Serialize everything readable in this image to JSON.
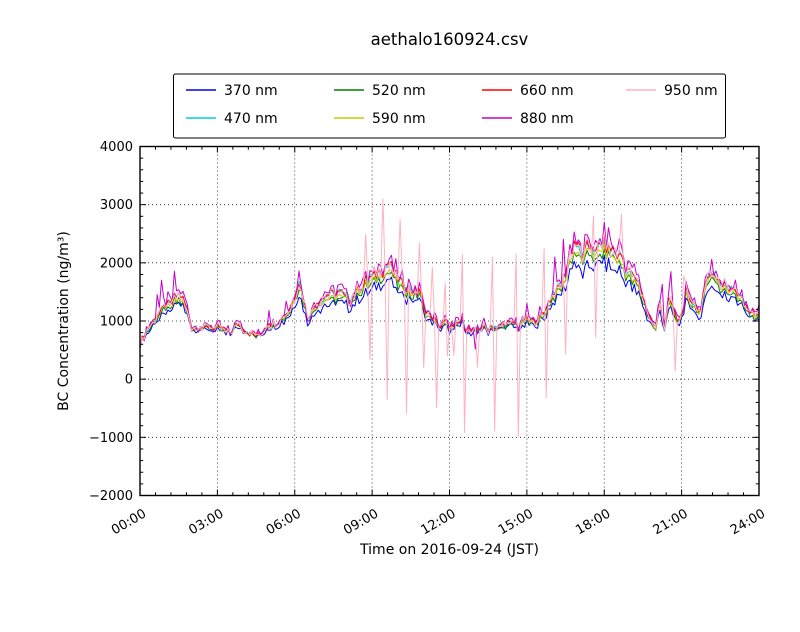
{
  "window": {
    "background": "#ffffff",
    "frame_color": "#000000"
  },
  "chart_data": {
    "type": "line",
    "title": "aethalo160924.csv",
    "xlabel": "Time on 2016-09-24 (JST)",
    "ylabel": "BC Concentration (ng/m³)",
    "xlim_hours": [
      0,
      24
    ],
    "ylim": [
      -2000,
      4000
    ],
    "grid": "dotted",
    "legend": {
      "position": "top",
      "columns": 4,
      "rows": 2
    },
    "xticks": [
      {
        "h": 0,
        "label": "00:00"
      },
      {
        "h": 3,
        "label": "03:00"
      },
      {
        "h": 6,
        "label": "06:00"
      },
      {
        "h": 9,
        "label": "09:00"
      },
      {
        "h": 12,
        "label": "12:00"
      },
      {
        "h": 15,
        "label": "15:00"
      },
      {
        "h": 18,
        "label": "18:00"
      },
      {
        "h": 21,
        "label": "21:00"
      },
      {
        "h": 24,
        "label": "24:00"
      }
    ],
    "yticks": [
      {
        "v": -2000,
        "label": "−2000"
      },
      {
        "v": -1000,
        "label": "−1000"
      },
      {
        "v": 0,
        "label": "0"
      },
      {
        "v": 1000,
        "label": "1000"
      },
      {
        "v": 2000,
        "label": "2000"
      },
      {
        "v": 3000,
        "label": "3000"
      },
      {
        "v": 4000,
        "label": "4000"
      }
    ],
    "sample_minutes": 5,
    "backbone_step_minutes": 10,
    "backbone": [
      600,
      760,
      880,
      980,
      1080,
      1150,
      1260,
      1240,
      1360,
      1400,
      1340,
      1180,
      900,
      870,
      900,
      860,
      910,
      880,
      880,
      850,
      810,
      790,
      890,
      950,
      870,
      820,
      780,
      740,
      770,
      870,
      950,
      920,
      980,
      1040,
      1110,
      1220,
      1420,
      1680,
      1380,
      1060,
      1150,
      1290,
      1340,
      1380,
      1420,
      1400,
      1450,
      1430,
      1370,
      1340,
      1450,
      1540,
      1600,
      1660,
      1700,
      1740,
      1800,
      1870,
      1920,
      1780,
      1660,
      1610,
      1560,
      1500,
      1460,
      1520,
      1210,
      1110,
      1060,
      950,
      900,
      950,
      900,
      880,
      950,
      1000,
      860,
      800,
      830,
      880,
      900,
      870,
      910,
      850,
      900,
      950,
      920,
      980,
      900,
      950,
      1010,
      980,
      1000,
      1050,
      1110,
      1300,
      1440,
      1500,
      1610,
      1800,
      2090,
      2240,
      2190,
      2050,
      2190,
      2240,
      2100,
      2240,
      2290,
      2200,
      2150,
      2100,
      2050,
      1860,
      1800,
      1700,
      1600,
      1400,
      1150,
      1000,
      860,
      1330,
      900,
      1300,
      1230,
      950,
      1090,
      1480,
      1250,
      1340,
      1120,
      1400,
      1640,
      1880,
      1700,
      1590,
      1640,
      1500,
      1540,
      1400,
      1440,
      1250,
      1150,
      1060,
      1150
    ],
    "series": [
      {
        "name": "370 nm",
        "color": "#0000ee",
        "rel": -0.16,
        "jitter": 1.0,
        "seed": 1
      },
      {
        "name": "470 nm",
        "color": "#00d0d0",
        "rel": 0.04,
        "jitter": 1.0,
        "seed": 2
      },
      {
        "name": "520 nm",
        "color": "#008000",
        "rel": -0.055,
        "jitter": 0.9,
        "seed": 3
      },
      {
        "name": "590 nm",
        "color": "#c8c800",
        "rel": -0.02,
        "jitter": 0.9,
        "seed": 4
      },
      {
        "name": "660 nm",
        "color": "#ff0000",
        "rel": 0.045,
        "jitter": 1.0,
        "seed": 5
      },
      {
        "name": "880 nm",
        "color": "#c800c8",
        "rel": 0.1,
        "jitter": 1.8,
        "seed": 6
      },
      {
        "name": "950 nm",
        "color": "#ffb3c1",
        "rel": 0.03,
        "jitter": 1.35,
        "seed": 7
      }
    ],
    "spikes_950_up": [
      [
        8.75,
        2490
      ],
      [
        9.45,
        3100
      ],
      [
        10.08,
        2745
      ],
      [
        10.87,
        2340
      ],
      [
        11.3,
        1920
      ],
      [
        11.85,
        1650
      ],
      [
        12.5,
        2150
      ],
      [
        13.7,
        2100
      ],
      [
        14.58,
        2150
      ],
      [
        15.65,
        2250
      ],
      [
        17.55,
        2805
      ],
      [
        18.7,
        2835
      ],
      [
        21.1,
        1775
      ]
    ],
    "spikes_950_down": [
      [
        8.95,
        340
      ],
      [
        9.6,
        -350
      ],
      [
        10.3,
        -580
      ],
      [
        11.03,
        200
      ],
      [
        11.5,
        -490
      ],
      [
        11.92,
        400
      ],
      [
        12.2,
        410
      ],
      [
        12.57,
        -920
      ],
      [
        13.05,
        210
      ],
      [
        13.77,
        -890
      ],
      [
        14.65,
        -980
      ],
      [
        15.72,
        -320
      ],
      [
        16.5,
        430
      ],
      [
        17.67,
        715
      ],
      [
        20.75,
        140
      ]
    ],
    "spikes_880": [
      [
        0.67,
        1450
      ],
      [
        0.87,
        1700
      ],
      [
        1.35,
        1855
      ],
      [
        5.0,
        1180
      ],
      [
        5.68,
        1340
      ],
      [
        6.17,
        1860
      ],
      [
        9.33,
        1945
      ],
      [
        13.0,
        515
      ],
      [
        15.0,
        1300
      ],
      [
        15.5,
        1250
      ],
      [
        16.05,
        2100
      ],
      [
        16.45,
        2405
      ],
      [
        16.85,
        2530
      ],
      [
        20.25,
        1630
      ],
      [
        20.55,
        1850
      ],
      [
        22.2,
        2060
      ],
      [
        23.97,
        1280
      ]
    ]
  }
}
